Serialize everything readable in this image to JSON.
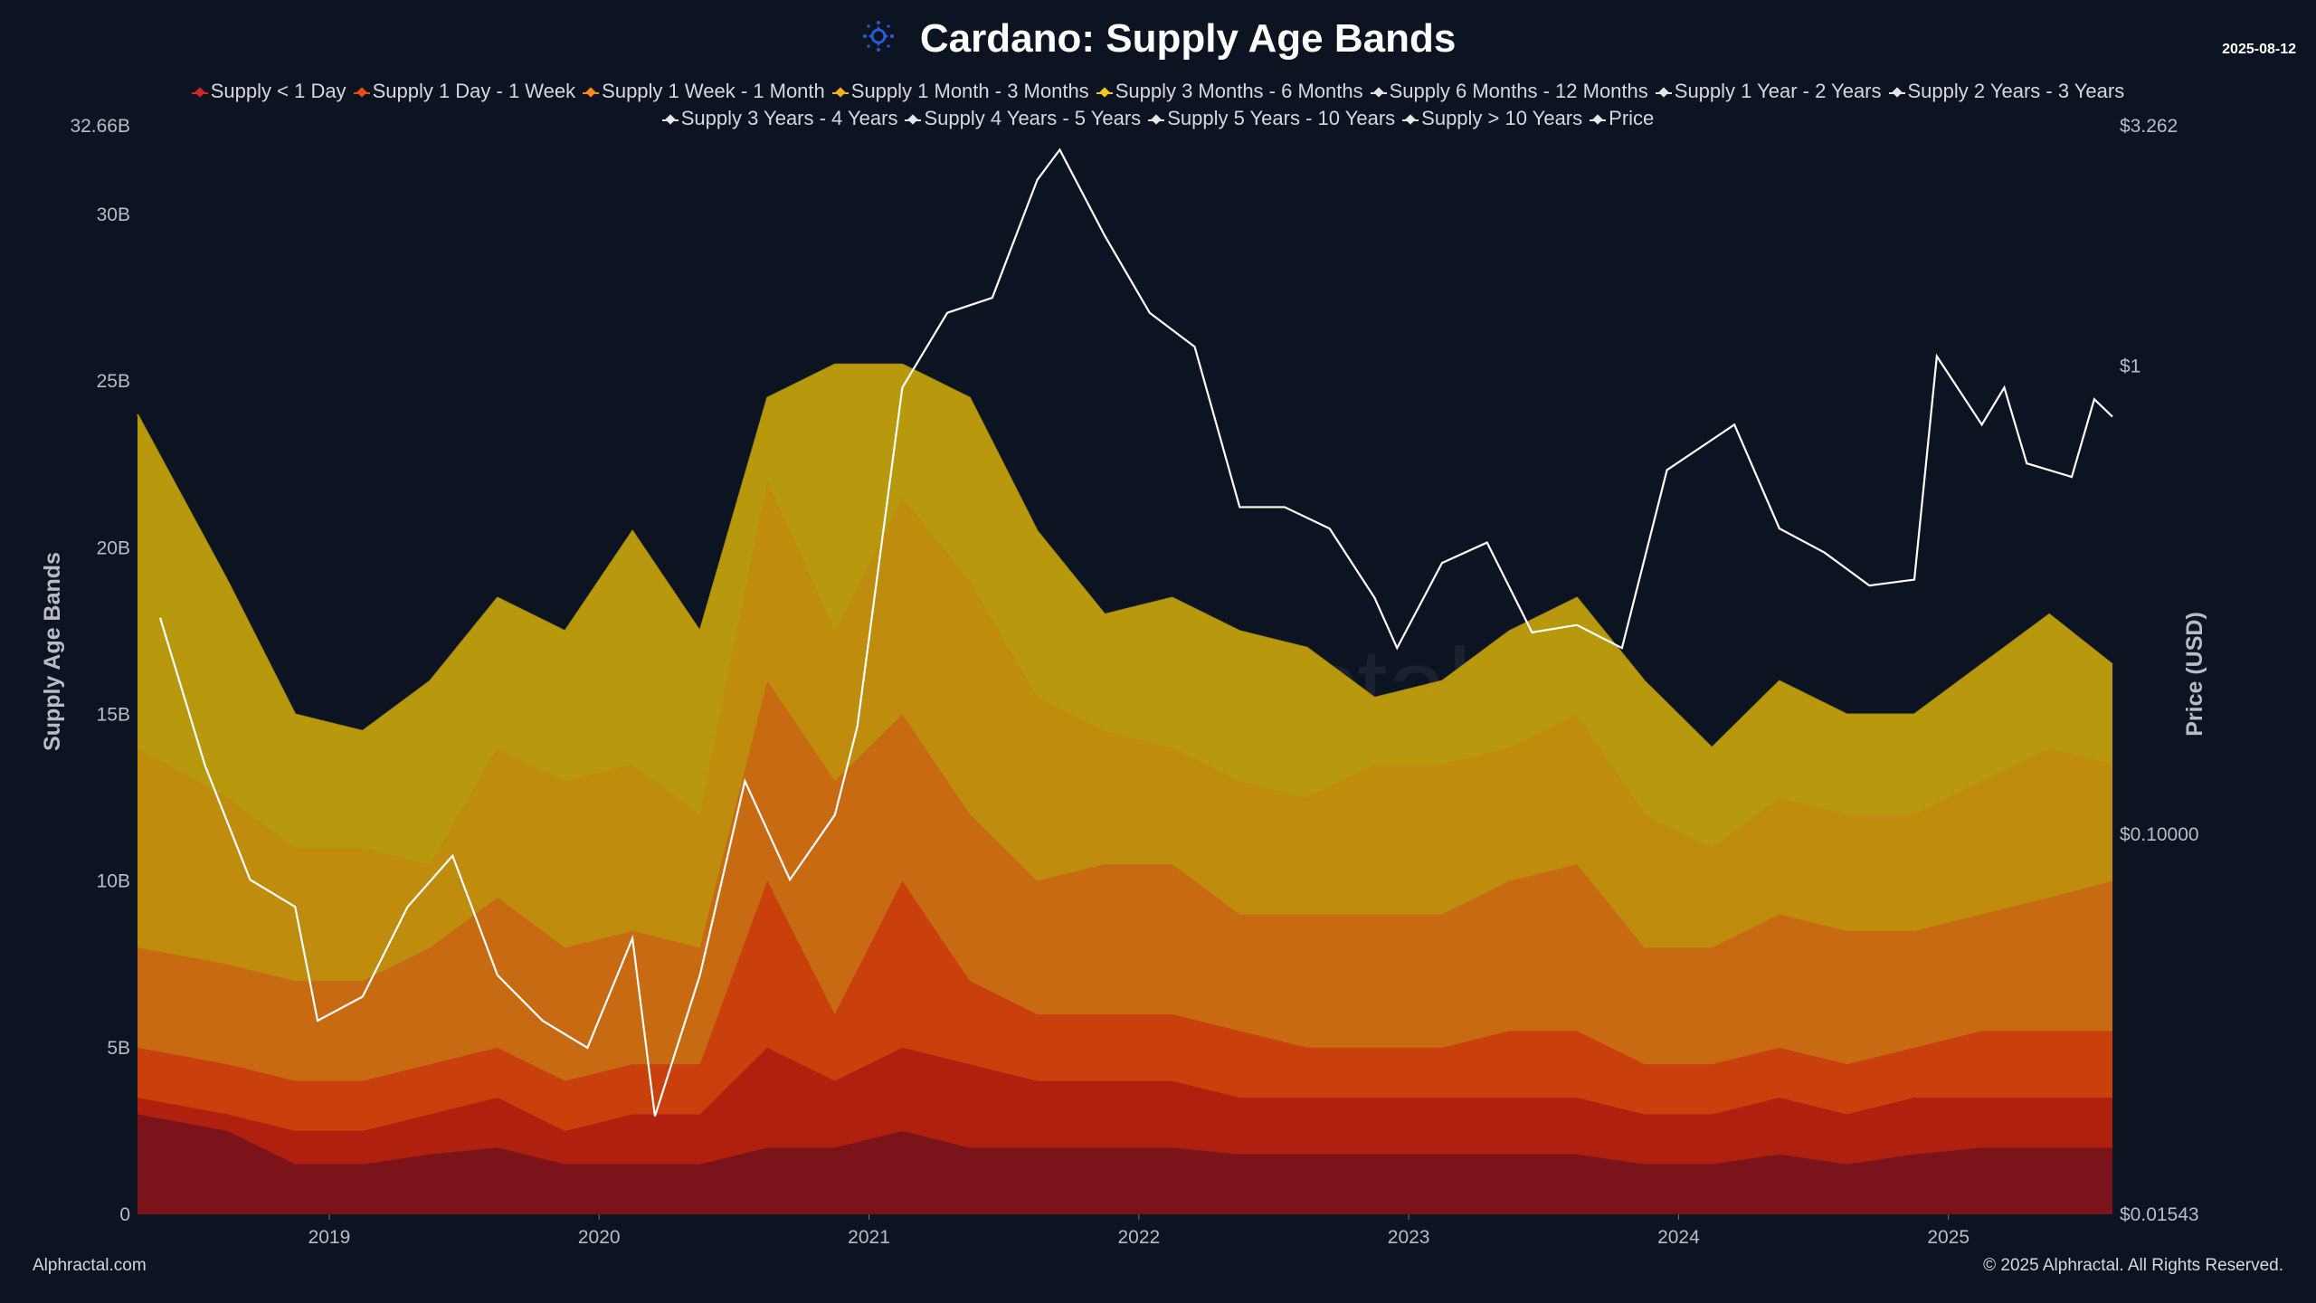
{
  "header": {
    "title": "Cardano: Supply Age Bands",
    "date": "2025-08-12",
    "logo": "cardano-logo-icon"
  },
  "footer": {
    "left": "Alphractal.com",
    "right": "© 2025 Alphractal. All Rights Reserved.",
    "watermark": "Alphractal"
  },
  "chart_data": {
    "type": "area",
    "stacked": true,
    "title": "Cardano: Supply Age Bands",
    "ylabel": "Supply Age Bands",
    "y2label": "Price (USD)",
    "ylim": [
      0,
      32.66
    ],
    "y_ticks": [
      "0",
      "5B",
      "10B",
      "15B",
      "20B",
      "25B",
      "30B",
      "32.66B"
    ],
    "y_tick_values": [
      0,
      5,
      10,
      15,
      20,
      25,
      30,
      32.66
    ],
    "y2_scale": "log",
    "y2lim": [
      0.01543,
      3.262
    ],
    "y2_ticks": [
      "$0.01543",
      "$0.10000",
      "$1",
      "$3.262"
    ],
    "y2_tick_values": [
      0.01543,
      0.1,
      1,
      3.262
    ],
    "x_ticks": [
      "2019",
      "2020",
      "2021",
      "2022",
      "2023",
      "2024",
      "2025"
    ],
    "grid": false,
    "legend_position": "top",
    "legend": [
      {
        "name": "Supply < 1 Day",
        "color": "#d0262a"
      },
      {
        "name": "Supply 1 Day - 1 Week",
        "color": "#f04a14"
      },
      {
        "name": "Supply 1 Week - 1 Month",
        "color": "#f78a1a"
      },
      {
        "name": "Supply 1 Month - 3 Months",
        "color": "#f2b21c"
      },
      {
        "name": "Supply 3 Months - 6 Months",
        "color": "#f0c61e"
      },
      {
        "name": "Supply 6 Months - 12 Months",
        "color": "#e6e6e6"
      },
      {
        "name": "Supply 1 Year - 2 Years",
        "color": "#e6e6e6"
      },
      {
        "name": "Supply 2 Years - 3 Years",
        "color": "#e6e6e6"
      },
      {
        "name": "Supply 3 Years - 4 Years",
        "color": "#e6e6e6"
      },
      {
        "name": "Supply 4 Years - 5 Years",
        "color": "#e6e6e6"
      },
      {
        "name": "Supply 5 Years - 10 Years",
        "color": "#e6e6e6"
      },
      {
        "name": "Supply > 10 Years",
        "color": "#e6e6e6"
      },
      {
        "name": "Price",
        "color": "#e6e6e6"
      }
    ],
    "x": [
      "2018-05",
      "2018-08",
      "2018-11",
      "2019-02",
      "2019-05",
      "2019-08",
      "2019-11",
      "2020-02",
      "2020-05",
      "2020-08",
      "2020-11",
      "2021-02",
      "2021-05",
      "2021-08",
      "2021-11",
      "2022-02",
      "2022-05",
      "2022-08",
      "2022-11",
      "2023-02",
      "2023-05",
      "2023-08",
      "2023-11",
      "2024-02",
      "2024-05",
      "2024-08",
      "2024-11",
      "2025-02",
      "2025-05",
      "2025-08"
    ],
    "series": [
      {
        "name": "Supply < 1 Day",
        "fill": "#7a141a",
        "values": [
          3,
          2.5,
          1.5,
          1.5,
          1.8,
          2,
          1.5,
          1.5,
          1.5,
          2,
          2,
          2.5,
          2,
          2,
          2,
          2,
          1.8,
          1.8,
          1.8,
          1.8,
          1.8,
          1.8,
          1.5,
          1.5,
          1.8,
          1.5,
          1.8,
          2,
          2,
          2
        ]
      },
      {
        "name": "Supply 1 Day - 1 Week",
        "fill": "#b0200f",
        "values": [
          0.5,
          0.5,
          1,
          1,
          1.2,
          1.5,
          1,
          1.5,
          1.5,
          3,
          2,
          2.5,
          2.5,
          2,
          2,
          2,
          1.7,
          1.7,
          1.7,
          1.7,
          1.7,
          1.7,
          1.5,
          1.5,
          1.7,
          1.5,
          1.7,
          1.5,
          1.5,
          1.5
        ]
      },
      {
        "name": "Supply 1 Week - 1 Month",
        "fill": "#c9400c",
        "values": [
          1.5,
          1.5,
          1.5,
          1.5,
          1.5,
          1.5,
          1.5,
          1.5,
          1.5,
          5,
          2,
          5,
          2.5,
          2,
          2,
          2,
          2,
          1.5,
          1.5,
          1.5,
          2,
          2,
          1.5,
          1.5,
          1.5,
          1.5,
          1.5,
          2,
          2,
          2
        ]
      },
      {
        "name": "Supply 1 Month - 3 Months",
        "fill": "#c86a12",
        "values": [
          3,
          3,
          3,
          3,
          3.5,
          4.5,
          4,
          4,
          3.5,
          6,
          7,
          5,
          5,
          4,
          4.5,
          4.5,
          3.5,
          4,
          4,
          4,
          4.5,
          5,
          3.5,
          3.5,
          4,
          4,
          3.5,
          3.5,
          4,
          4.5
        ]
      },
      {
        "name": "Supply 3 Months - 6 Months",
        "fill": "#c08c0e",
        "values": [
          6,
          5,
          4,
          4,
          2.5,
          4.5,
          5,
          5,
          4,
          6,
          4.5,
          6.5,
          7,
          5.5,
          4,
          3.5,
          4,
          3.5,
          4.5,
          4.5,
          4,
          4.5,
          4,
          3,
          3.5,
          3.5,
          3.5,
          4,
          4.5,
          3.5
        ]
      },
      {
        "name": "Supply 6 Months - 12 Months",
        "fill": "#b8980c",
        "values": [
          10,
          6.5,
          4,
          3.5,
          5.5,
          4.5,
          4.5,
          7,
          5.5,
          2.5,
          8,
          4,
          5.5,
          5,
          3.5,
          4.5,
          4.5,
          4.5,
          2,
          2.5,
          3.5,
          3.5,
          4,
          3,
          3.5,
          3,
          3,
          3.5,
          4,
          3
        ]
      }
    ],
    "price": {
      "name": "Price",
      "x": [
        "2018-05",
        "2018-07",
        "2018-09",
        "2018-11",
        "2018-12",
        "2019-02",
        "2019-04",
        "2019-06",
        "2019-08",
        "2019-10",
        "2019-12",
        "2020-02",
        "2020-03",
        "2020-05",
        "2020-07",
        "2020-09",
        "2020-11",
        "2020-12",
        "2021-02",
        "2021-04",
        "2021-06",
        "2021-08",
        "2021-09",
        "2021-11",
        "2022-01",
        "2022-03",
        "2022-05",
        "2022-07",
        "2022-09",
        "2022-11",
        "2022-12",
        "2023-02",
        "2023-04",
        "2023-06",
        "2023-08",
        "2023-10",
        "2023-12",
        "2024-03",
        "2024-05",
        "2024-07",
        "2024-09",
        "2024-11",
        "2024-12",
        "2025-02",
        "2025-03",
        "2025-04",
        "2025-06",
        "2025-07",
        "2025-08"
      ],
      "values": [
        0.29,
        0.14,
        0.08,
        0.07,
        0.04,
        0.045,
        0.07,
        0.09,
        0.05,
        0.04,
        0.035,
        0.06,
        0.025,
        0.05,
        0.13,
        0.08,
        0.11,
        0.17,
        0.9,
        1.3,
        1.4,
        2.5,
        2.9,
        1.9,
        1.3,
        1.1,
        0.5,
        0.5,
        0.45,
        0.32,
        0.25,
        0.38,
        0.42,
        0.27,
        0.28,
        0.25,
        0.6,
        0.75,
        0.45,
        0.4,
        0.34,
        0.35,
        1.05,
        0.75,
        0.9,
        0.62,
        0.58,
        0.85,
        0.78
      ]
    }
  }
}
